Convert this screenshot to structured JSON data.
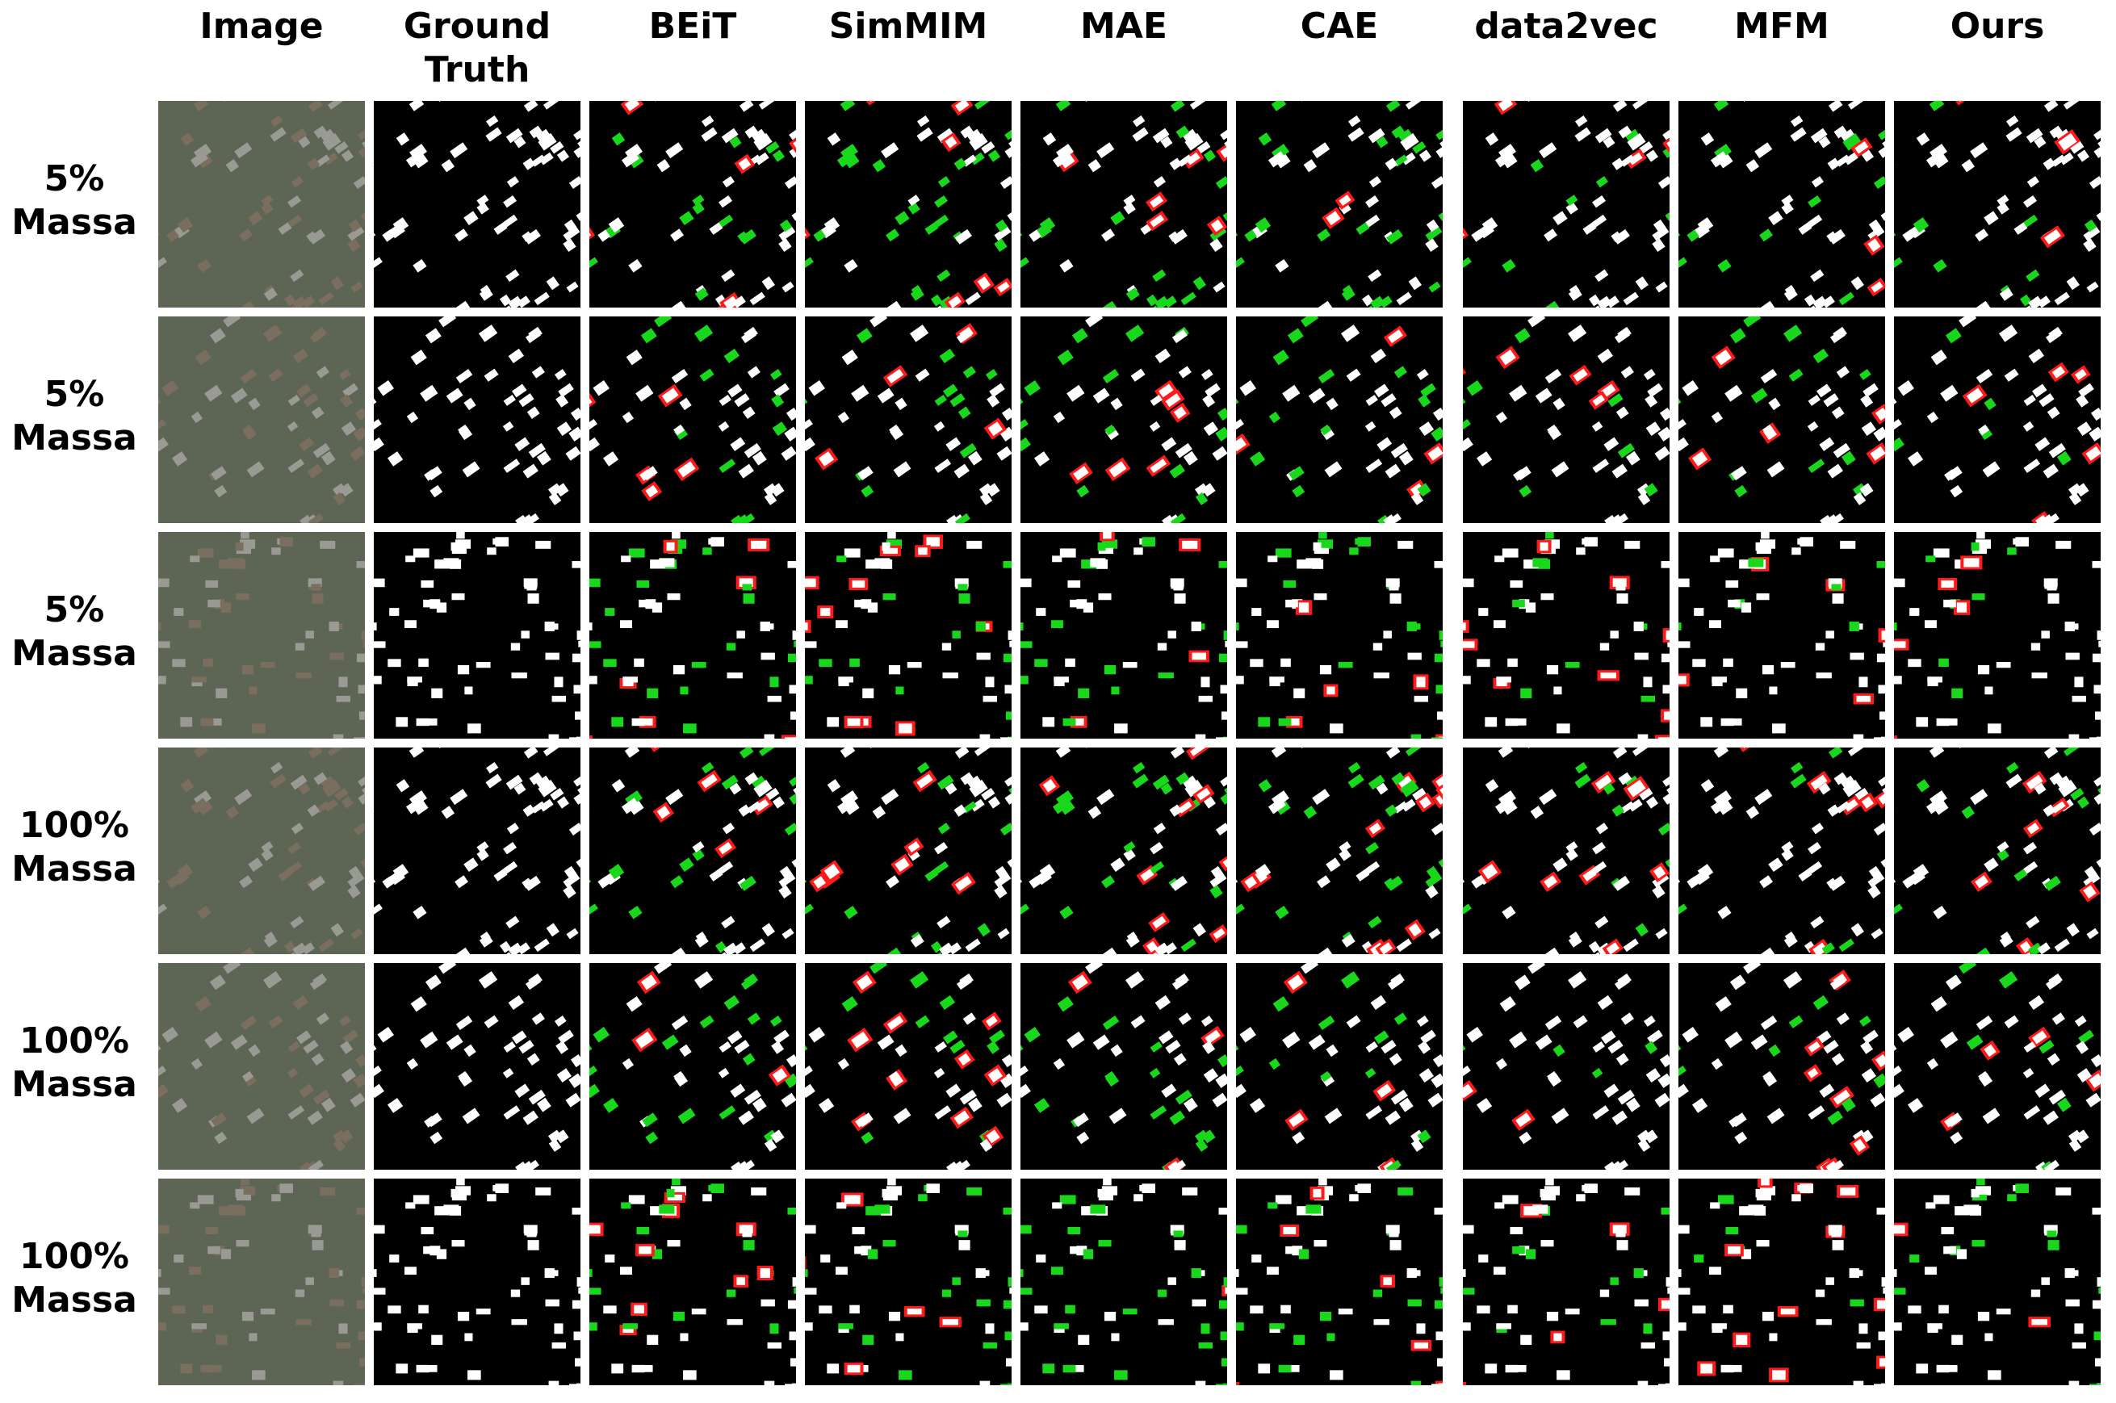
{
  "columns": [
    "Image",
    "Ground Truth",
    "BEiT",
    "SimMIM",
    "MAE",
    "CAE",
    "data2vec",
    "MFM",
    "Ours"
  ],
  "rows": [
    {
      "percent": "5%",
      "dataset": "Massa"
    },
    {
      "percent": "5%",
      "dataset": "Massa"
    },
    {
      "percent": "5%",
      "dataset": "Massa"
    },
    {
      "percent": "100%",
      "dataset": "Massa"
    },
    {
      "percent": "100%",
      "dataset": "Massa"
    },
    {
      "percent": "100%",
      "dataset": "Massa"
    }
  ]
}
